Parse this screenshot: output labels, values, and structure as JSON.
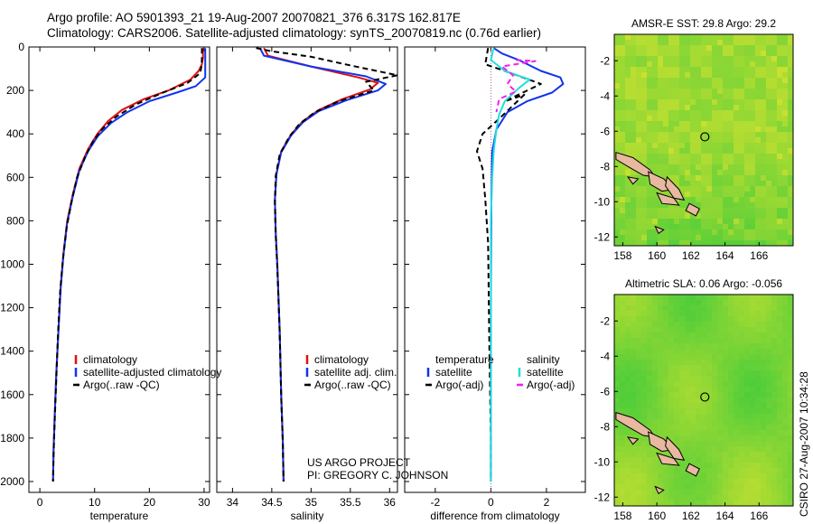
{
  "figure": {
    "title_line1": "Argo profile: AO 5901393_21 19-Aug-2007 20070821_376 6.317S 162.817E",
    "title_line2": "Climatology: CARS2006. Satellite-adjusted climatology: synTS_20070819.nc (0.76d earlier)",
    "credit_line1": "US ARGO PROJECT",
    "credit_line2": "PI: GREGORY C. JOHNSON",
    "stamp": "CSIRO 27-Aug-2007 10:34:28"
  },
  "colors": {
    "climatology": "#dd1111",
    "satellite": "#1133ee",
    "argo": "#000000",
    "sal_satellite": "#22dddd",
    "sal_argo": "#ee22ee",
    "map_land": "#e8b8a0",
    "map_green": "#2ec83c",
    "map_yellow": "#c8e030"
  },
  "chart_data": [
    {
      "id": "temperature",
      "type": "line",
      "xlabel": "temperature",
      "ylabel": "",
      "xlim": [
        -2,
        31
      ],
      "ylim": [
        2050,
        0
      ],
      "xticks": [
        0,
        10,
        20,
        30
      ],
      "yticks": [
        0,
        200,
        400,
        600,
        800,
        1000,
        1200,
        1400,
        1600,
        1800,
        2000
      ],
      "legend": [
        "climatology",
        "satellite-adjusted climatology",
        "Argo(..raw -QC)"
      ],
      "legend_position": "bottom",
      "series": [
        {
          "name": "climatology",
          "color_key": "climatology",
          "dash": false,
          "points": [
            [
              29.8,
              5
            ],
            [
              29.8,
              50
            ],
            [
              29.6,
              80
            ],
            [
              29.0,
              110
            ],
            [
              27.5,
              150
            ],
            [
              23.5,
              200
            ],
            [
              19,
              240
            ],
            [
              15,
              290
            ],
            [
              12.5,
              340
            ],
            [
              10.5,
              400
            ],
            [
              8.8,
              470
            ],
            [
              7.2,
              560
            ],
            [
              6,
              680
            ],
            [
              5,
              800
            ],
            [
              4.3,
              950
            ],
            [
              3.8,
              1100
            ],
            [
              3.4,
              1300
            ],
            [
              3.0,
              1500
            ],
            [
              2.7,
              1700
            ],
            [
              2.5,
              1850
            ],
            [
              2.4,
              2000
            ]
          ]
        },
        {
          "name": "satellite-adjusted climatology",
          "color_key": "satellite",
          "dash": false,
          "points": [
            [
              30.2,
              5
            ],
            [
              30.2,
              70
            ],
            [
              30.2,
              100
            ],
            [
              30.2,
              140
            ],
            [
              28.5,
              180
            ],
            [
              25,
              210
            ],
            [
              20,
              250
            ],
            [
              16,
              300
            ],
            [
              13,
              350
            ],
            [
              10.6,
              410
            ],
            [
              8.8,
              480
            ],
            [
              7.2,
              570
            ],
            [
              6,
              690
            ],
            [
              5,
              810
            ],
            [
              4.3,
              960
            ],
            [
              3.8,
              1110
            ],
            [
              3.4,
              1310
            ],
            [
              3.0,
              1510
            ],
            [
              2.7,
              1710
            ],
            [
              2.5,
              1860
            ],
            [
              2.4,
              2000
            ]
          ]
        },
        {
          "name": "Argo(..raw -QC)",
          "color_key": "argo",
          "dash": true,
          "points": [
            [
              29.6,
              5
            ],
            [
              29.6,
              60
            ],
            [
              29.5,
              90
            ],
            [
              29.3,
              120
            ],
            [
              27,
              165
            ],
            [
              22,
              215
            ],
            [
              17.5,
              265
            ],
            [
              14,
              320
            ],
            [
              11.5,
              375
            ],
            [
              9.8,
              430
            ],
            [
              8.2,
              510
            ],
            [
              6.8,
              600
            ],
            [
              5.8,
              710
            ],
            [
              4.9,
              830
            ],
            [
              4.2,
              980
            ],
            [
              3.7,
              1130
            ],
            [
              3.3,
              1330
            ],
            [
              3.0,
              1530
            ],
            [
              2.7,
              1730
            ],
            [
              2.5,
              1880
            ],
            [
              2.4,
              2000
            ]
          ]
        }
      ]
    },
    {
      "id": "salinity",
      "type": "line",
      "xlabel": "salinity",
      "ylabel": "",
      "xlim": [
        33.8,
        36.1
      ],
      "ylim": [
        2050,
        0
      ],
      "xticks": [
        34,
        34.5,
        35,
        35.5,
        36
      ],
      "legend": [
        "climatology",
        "satellite adj. clim.",
        "Argo(..raw -QC)"
      ],
      "legend_position": "bottom",
      "series": [
        {
          "name": "climatology",
          "color_key": "climatology",
          "dash": false,
          "points": [
            [
              34.4,
              5
            ],
            [
              34.45,
              40
            ],
            [
              35,
              90
            ],
            [
              35.6,
              140
            ],
            [
              35.85,
              165
            ],
            [
              35.75,
              195
            ],
            [
              35.4,
              240
            ],
            [
              35.1,
              290
            ],
            [
              34.9,
              340
            ],
            [
              34.75,
              400
            ],
            [
              34.62,
              480
            ],
            [
              34.56,
              580
            ],
            [
              34.54,
              700
            ],
            [
              34.55,
              850
            ],
            [
              34.57,
              1000
            ],
            [
              34.6,
              1300
            ],
            [
              34.62,
              1600
            ],
            [
              34.64,
              1800
            ],
            [
              34.65,
              2000
            ]
          ]
        },
        {
          "name": "satellite adj. clim.",
          "color_key": "satellite",
          "dash": false,
          "points": [
            [
              34.35,
              5
            ],
            [
              34.4,
              40
            ],
            [
              35,
              90
            ],
            [
              35.7,
              135
            ],
            [
              35.95,
              170
            ],
            [
              35.85,
              200
            ],
            [
              35.45,
              245
            ],
            [
              35.1,
              295
            ],
            [
              34.9,
              345
            ],
            [
              34.75,
              405
            ],
            [
              34.62,
              485
            ],
            [
              34.56,
              585
            ],
            [
              34.54,
              705
            ],
            [
              34.55,
              855
            ],
            [
              34.57,
              1005
            ],
            [
              34.6,
              1305
            ],
            [
              34.62,
              1605
            ],
            [
              34.64,
              1805
            ],
            [
              34.65,
              2000
            ]
          ]
        },
        {
          "name": "Argo(..raw -QC)",
          "color_key": "argo",
          "dash": true,
          "points": [
            [
              34.3,
              5
            ],
            [
              34.5,
              20
            ],
            [
              35,
              45
            ],
            [
              35.5,
              85
            ],
            [
              36.1,
              130
            ],
            [
              35.7,
              160
            ],
            [
              35.8,
              200
            ],
            [
              35.35,
              250
            ],
            [
              35.05,
              300
            ],
            [
              34.85,
              355
            ],
            [
              34.72,
              415
            ],
            [
              34.6,
              495
            ],
            [
              34.55,
              595
            ],
            [
              34.54,
              715
            ],
            [
              34.55,
              865
            ],
            [
              34.57,
              1015
            ],
            [
              34.6,
              1315
            ],
            [
              34.62,
              1615
            ],
            [
              34.64,
              1815
            ],
            [
              34.65,
              2000
            ]
          ]
        }
      ]
    },
    {
      "id": "difference",
      "type": "line",
      "xlabel": "difference from climatology",
      "ylabel": "",
      "xlim": [
        -3.1,
        3.4
      ],
      "ylim": [
        2050,
        0
      ],
      "xticks": [
        -2,
        0,
        2
      ],
      "legend": [
        "temperature",
        "satellite",
        "Argo(-adj)",
        "salinity",
        "satellite",
        "Argo(-adj)"
      ],
      "legend_position": "bottom",
      "series": [
        {
          "name": "satellite",
          "group": "temperature",
          "color_key": "satellite",
          "dash": false,
          "points": [
            [
              0.1,
              5
            ],
            [
              0.4,
              30
            ],
            [
              1.0,
              60
            ],
            [
              1.8,
              110
            ],
            [
              2.5,
              140
            ],
            [
              2.6,
              170
            ],
            [
              2.2,
              210
            ],
            [
              1.3,
              250
            ],
            [
              0.6,
              300
            ],
            [
              0.2,
              380
            ],
            [
              0.05,
              480
            ],
            [
              0.02,
              700
            ],
            [
              0,
              1200
            ],
            [
              0,
              2000
            ]
          ]
        },
        {
          "name": "Argo(-adj)",
          "group": "temperature",
          "color_key": "argo",
          "dash": true,
          "points": [
            [
              -0.1,
              5
            ],
            [
              -0.2,
              80
            ],
            [
              0.5,
              110
            ],
            [
              1.8,
              170
            ],
            [
              0.5,
              250
            ],
            [
              1.2,
              220
            ],
            [
              0.3,
              330
            ],
            [
              -0.3,
              400
            ],
            [
              -0.5,
              480
            ],
            [
              -0.3,
              560
            ],
            [
              -0.2,
              700
            ],
            [
              -0.1,
              900
            ],
            [
              -0.05,
              1400
            ],
            [
              0,
              1800
            ],
            [
              0,
              2000
            ]
          ]
        },
        {
          "name": "satellite",
          "group": "salinity",
          "color_key": "sal_satellite",
          "dash": false,
          "points": [
            [
              0.1,
              5
            ],
            [
              0,
              60
            ],
            [
              0.5,
              110
            ],
            [
              1.4,
              150
            ],
            [
              1.0,
              190
            ],
            [
              0.5,
              250
            ],
            [
              0.3,
              310
            ],
            [
              0.2,
              380
            ],
            [
              0.1,
              480
            ],
            [
              0.05,
              600
            ],
            [
              0,
              800
            ],
            [
              0,
              2000
            ]
          ]
        },
        {
          "name": "Argo(-adj)",
          "group": "salinity",
          "color_key": "sal_argo",
          "dash": true,
          "points": [
            [
              0.9,
              60
            ],
            [
              1.6,
              65
            ],
            [
              0.4,
              90
            ],
            [
              0.8,
              130
            ],
            [
              0.6,
              170
            ],
            [
              0.9,
              205
            ],
            [
              0.3,
              240
            ],
            [
              0.2,
              300
            ]
          ]
        }
      ]
    }
  ],
  "maps": [
    {
      "id": "sst",
      "title": "AMSR-E SST: 29.8 Argo: 29.2",
      "xticks": [
        158,
        160,
        162,
        164,
        166
      ],
      "yticks": [
        -2,
        -4,
        -6,
        -8,
        -10,
        -12
      ],
      "xlim": [
        157.5,
        168
      ],
      "ylim": [
        -12.5,
        -0.5
      ],
      "argo_position": [
        162.817,
        -6.317
      ]
    },
    {
      "id": "sla",
      "title": "Altimetric SLA: 0.06 Argo: -0.056",
      "xticks": [
        158,
        160,
        162,
        164,
        166
      ],
      "yticks": [
        -2,
        -4,
        -6,
        -8,
        -10,
        -12
      ],
      "xlim": [
        157.5,
        168
      ],
      "ylim": [
        -12.5,
        -0.5
      ],
      "argo_position": [
        162.817,
        -6.317
      ]
    }
  ],
  "legend_labels": {
    "temp": [
      "climatology",
      "satellite-adjusted climatology",
      "Argo(..raw -QC)"
    ],
    "sal": [
      "climatology",
      "satellite adj. clim.",
      "Argo(..raw -QC)"
    ],
    "diff_temp_header": "temperature",
    "diff_sal_header": "salinity",
    "diff_items": [
      "satellite",
      "Argo(-adj)"
    ]
  }
}
